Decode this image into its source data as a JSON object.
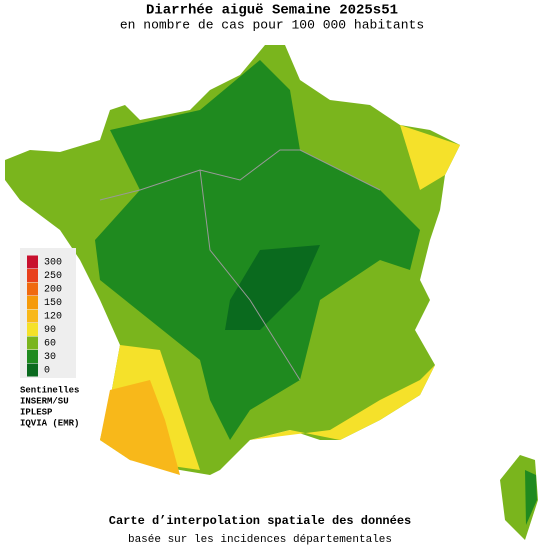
{
  "header": {
    "title": "Diarrhée aiguë Semaine 2025s51",
    "subtitle": "en nombre de cas pour 100 000 habitants"
  },
  "legend": {
    "items": [
      {
        "label": "300",
        "color": "#c8102e"
      },
      {
        "label": "250",
        "color": "#e8401c"
      },
      {
        "label": "200",
        "color": "#f06a10"
      },
      {
        "label": "150",
        "color": "#f59a0a"
      },
      {
        "label": "120",
        "color": "#f8b81a"
      },
      {
        "label": "90",
        "color": "#f5e12a"
      },
      {
        "label": "60",
        "color": "#7ab51d"
      },
      {
        "label": "30",
        "color": "#1f8a1f"
      },
      {
        "label": "0",
        "color": "#0a6a1e"
      }
    ],
    "sources": [
      "Sentinelles",
      "INSERM/SU",
      "IPLESP",
      "IQVIA (EMR)"
    ]
  },
  "footer": {
    "line1": "Carte d’interpolation spatiale des données",
    "line2": "basée sur les incidences départementales"
  }
}
